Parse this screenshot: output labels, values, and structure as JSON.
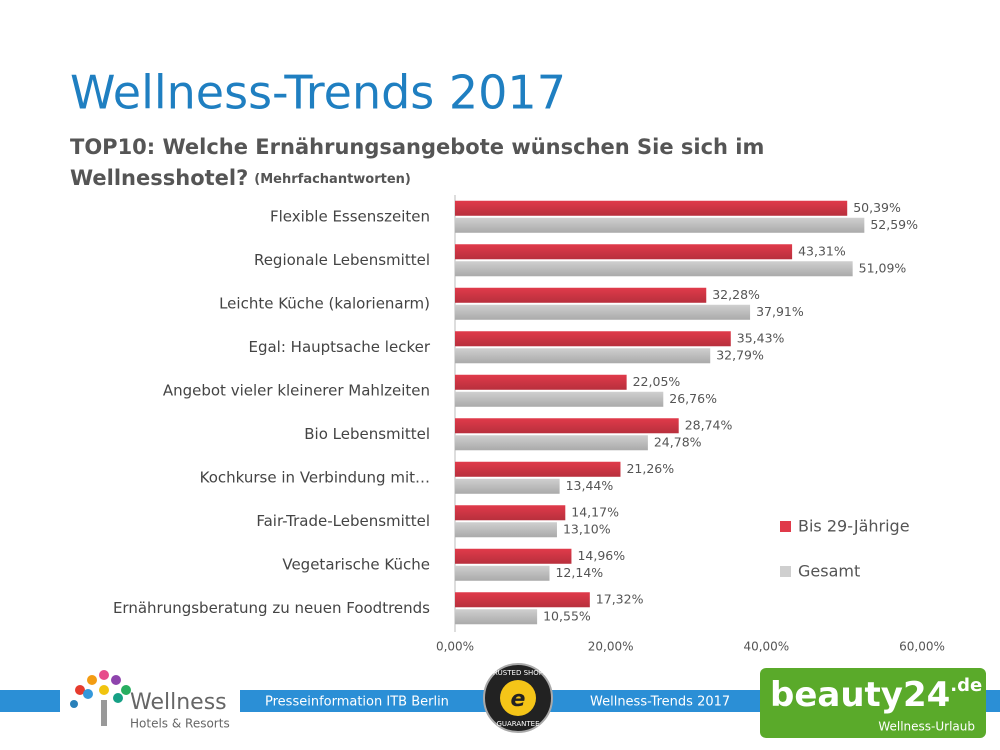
{
  "title": "Wellness-Trends 2017",
  "subtitle": "TOP10: Welche Ernährungsangebote wünschen Sie sich im",
  "subtitle_line2": "Wellnesshotel?",
  "subtitle_note": "(Mehrfachantworten)",
  "chart_data": {
    "type": "hbar",
    "categories": [
      "Flexible Essenszeiten",
      "Regionale Lebensmittel",
      "Leichte Küche (kalorienarm)",
      "Egal: Hauptsache lecker",
      "Angebot vieler kleinerer Mahlzeiten",
      "Bio Lebensmittel",
      "Kochkurse in Verbindung mit…",
      "Fair-Trade-Lebensmittel",
      "Vegetarische Küche",
      "Ernährungsberatung zu neuen Foodtrends"
    ],
    "series": [
      {
        "name": "Bis 29-Jährige",
        "color": "#e03a4a",
        "values": [
          50.39,
          43.31,
          32.28,
          35.43,
          22.05,
          28.74,
          21.26,
          14.17,
          14.96,
          17.32
        ],
        "value_labels": [
          "50,39%",
          "43,31%",
          "32,28%",
          "35,43%",
          "22,05%",
          "28,74%",
          "21,26%",
          "14,17%",
          "14,96%",
          "17,32%"
        ]
      },
      {
        "name": "Gesamt",
        "color": "#cfcfcf",
        "values": [
          52.59,
          51.09,
          37.91,
          32.79,
          26.76,
          24.78,
          13.44,
          13.1,
          12.14,
          10.55
        ],
        "value_labels": [
          "52,59%",
          "51,09%",
          "37,91%",
          "32,79%",
          "26,76%",
          "24,78%",
          "13,44%",
          "13,10%",
          "12,14%",
          "10,55%"
        ]
      }
    ],
    "xlim": [
      0,
      60
    ],
    "xticks": [
      {
        "value": 0,
        "label": "0,00%"
      },
      {
        "value": 20,
        "label": "20,00%"
      },
      {
        "value": 40,
        "label": "40,00%"
      },
      {
        "value": 60,
        "label": "60,00%"
      }
    ],
    "legend": "right"
  },
  "footer": {
    "left": "Presseinformation ITB Berlin",
    "right": "Wellness-Trends 2017",
    "logo_name": "Wellness",
    "logo_sub": "Hotels & Resorts",
    "badge_top": "TRUSTED SHOPS",
    "badge_bottom": "GUARANTEE",
    "brand": "beauty24",
    "brand_suffix": ".de",
    "brand_tagline": "Wellness-Urlaub"
  }
}
